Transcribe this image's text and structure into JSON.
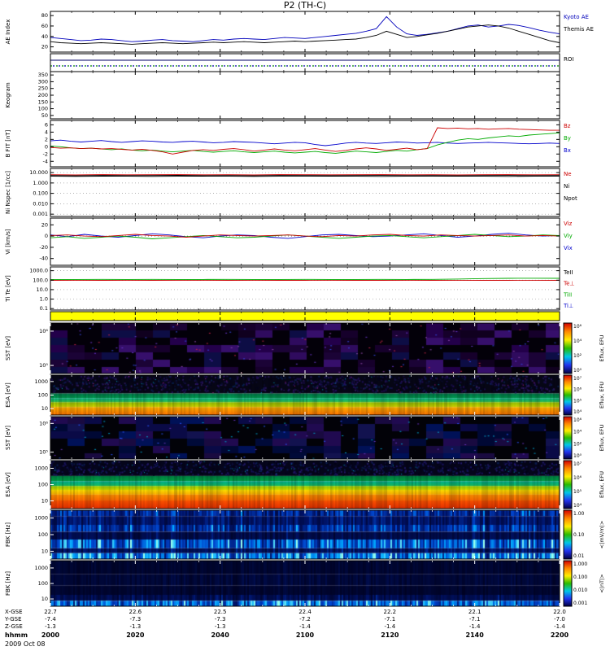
{
  "title": "P2 (TH-C)",
  "footer": {
    "date": "2009 Oct 08"
  },
  "time_axis": {
    "rows": [
      {
        "label": "X-GSE",
        "values": [
          "22.7",
          "22.6",
          "22.5",
          "22.4",
          "22.2",
          "22.1",
          "22.0"
        ]
      },
      {
        "label": "Y-GSE",
        "values": [
          "-7.4",
          "-7.3",
          "-7.3",
          "-7.2",
          "-7.1",
          "-7.1",
          "-7.0"
        ]
      },
      {
        "label": "Z-GSE",
        "values": [
          "-1.3",
          "-1.3",
          "-1.3",
          "-1.4",
          "-1.4",
          "-1.4",
          "-1.4"
        ]
      },
      {
        "label": "hhmm",
        "values": [
          "2000",
          "2020",
          "2040",
          "2100",
          "2120",
          "2140",
          "2200"
        ]
      }
    ]
  },
  "colorbar_gradient": [
    "#d40000",
    "#ff8800",
    "#ffee00",
    "#28bb00",
    "#00c8e8",
    "#2233ee",
    "#000040"
  ],
  "chart_data": [
    {
      "id": "ae",
      "type": "line",
      "ylabel": "AE Index",
      "ylim": [
        10,
        88
      ],
      "yticks": [
        80,
        60,
        40,
        20
      ],
      "series": [
        {
          "name": "Kyoto AE",
          "color": "#0000bb",
          "y": [
            38,
            36,
            34,
            32,
            33,
            35,
            34,
            32,
            30,
            31,
            33,
            34,
            32,
            31,
            30,
            32,
            34,
            33,
            35,
            36,
            35,
            34,
            36,
            38,
            37,
            36,
            38,
            40,
            42,
            44,
            46,
            50,
            55,
            78,
            58,
            45,
            42,
            44,
            47,
            50,
            55,
            60,
            62,
            58,
            60,
            63,
            61,
            57,
            52,
            48,
            45
          ]
        },
        {
          "name": "Themis AE",
          "color": "#000000",
          "y": [
            30,
            28,
            27,
            26,
            27,
            28,
            27,
            26,
            25,
            26,
            27,
            28,
            27,
            26,
            27,
            28,
            29,
            28,
            29,
            30,
            29,
            28,
            29,
            30,
            31,
            30,
            31,
            32,
            33,
            34,
            35,
            38,
            42,
            50,
            44,
            38,
            40,
            43,
            46,
            50,
            54,
            58,
            60,
            62,
            60,
            56,
            50,
            44,
            38,
            32,
            28
          ]
        }
      ],
      "right_labels": [
        {
          "text": "Kyoto AE",
          "color": "#0000bb"
        },
        {
          "text": "Themis AE",
          "color": "#000000"
        }
      ]
    },
    {
      "id": "roi",
      "type": "marker-strip",
      "line_color": "#000066",
      "dot_colors": [
        "#008800",
        "#0000aa"
      ],
      "right_labels": [
        {
          "text": "ROI",
          "color": "#000000"
        }
      ]
    },
    {
      "id": "keo",
      "type": "line",
      "ylabel": "Keogram",
      "ylim": [
        25,
        375
      ],
      "yticks": [
        350,
        300,
        250,
        200,
        150,
        100,
        50
      ],
      "series": []
    },
    {
      "id": "bfit",
      "type": "line",
      "ylabel": "B FIT [nT]",
      "ylim": [
        -5.5,
        7.2
      ],
      "yticks": [
        6,
        4,
        2,
        0,
        -2,
        -4
      ],
      "series": [
        {
          "name": "Bx",
          "color": "#0000cc",
          "y": [
            1.6,
            1.8,
            1.5,
            1.3,
            1.5,
            1.7,
            1.4,
            1.2,
            1.4,
            1.6,
            1.5,
            1.3,
            1.2,
            1.4,
            1.5,
            1.3,
            1.1,
            1.2,
            1.4,
            1.3,
            1.2,
            1.0,
            0.8,
            1.0,
            1.2,
            1.1,
            0.6,
            0.3,
            0.6,
            1.0,
            1.2,
            1.0,
            0.9,
            1.1,
            1.3,
            1.2,
            1.0,
            1.1,
            1.2,
            1.0,
            0.9,
            1.0,
            1.1,
            1.2,
            1.1,
            1.0,
            0.9,
            0.8,
            0.9,
            1.0,
            0.9
          ]
        },
        {
          "name": "By",
          "color": "#00aa00",
          "y": [
            0.2,
            0.0,
            -0.3,
            -0.5,
            -0.4,
            -0.6,
            -0.8,
            -0.6,
            -0.9,
            -1.1,
            -0.9,
            -1.2,
            -1.4,
            -1.2,
            -1.0,
            -1.3,
            -1.5,
            -1.3,
            -1.1,
            -1.4,
            -1.6,
            -1.4,
            -1.2,
            -1.5,
            -1.7,
            -1.5,
            -1.3,
            -1.6,
            -1.8,
            -1.5,
            -1.2,
            -1.4,
            -1.6,
            -1.3,
            -1.0,
            -1.2,
            -0.8,
            -0.5,
            0.5,
            1.2,
            1.8,
            2.2,
            2.0,
            2.4,
            2.7,
            3.0,
            2.8,
            3.2,
            3.4,
            3.6,
            3.8
          ]
        },
        {
          "name": "Bz",
          "color": "#cc0000",
          "y": [
            -0.2,
            -0.4,
            -0.3,
            -0.5,
            -0.4,
            -0.6,
            -0.5,
            -0.7,
            -0.9,
            -0.7,
            -1.0,
            -1.4,
            -2.0,
            -1.5,
            -1.0,
            -0.8,
            -1.0,
            -0.7,
            -0.5,
            -0.8,
            -1.2,
            -0.9,
            -0.6,
            -0.9,
            -1.1,
            -0.8,
            -0.5,
            -0.9,
            -1.3,
            -1.0,
            -0.6,
            -0.3,
            -0.6,
            -1.0,
            -0.7,
            -0.4,
            -0.8,
            -0.5,
            5.2,
            5.0,
            5.1,
            4.9,
            5.0,
            4.8,
            4.9,
            5.0,
            4.8,
            4.7,
            4.6,
            4.5,
            4.5
          ]
        }
      ],
      "right_labels": [
        {
          "text": "Bz",
          "color": "#cc0000"
        },
        {
          "text": "By",
          "color": "#00aa00"
        },
        {
          "text": "Bx",
          "color": "#0000cc"
        }
      ]
    },
    {
      "id": "ni",
      "type": "line",
      "yscale": "log",
      "ylabel": "Ni Nspec [1/cc]",
      "ylim": [
        0.0006,
        25
      ],
      "yticks": [
        10,
        1,
        0.1,
        0.01,
        0.001
      ],
      "ytick_labels": [
        "10.000",
        "1.000",
        "0.100",
        "0.010",
        "0.001"
      ],
      "dotted_gridlines": true,
      "series": [
        {
          "name": "Ne",
          "color": "#cc0000",
          "y": [
            6.2,
            6.0,
            6.3,
            6.1,
            6.2,
            6.4,
            6.1,
            6.2,
            6.0,
            6.3,
            6.2,
            6.1,
            6.2,
            6.3,
            6.1,
            6.2,
            6.0,
            6.2,
            6.3,
            6.1,
            6.2
          ]
        },
        {
          "name": "Ni",
          "color": "#000000",
          "y": [
            5.2,
            5.0,
            5.3,
            5.1,
            5.2,
            5.4,
            5.1,
            5.2,
            5.0,
            5.3,
            5.2,
            5.1,
            5.2,
            5.3,
            5.1,
            5.2,
            5.0,
            5.2,
            5.3,
            5.1,
            5.2
          ]
        },
        {
          "name": "Npot",
          "color": "#000000",
          "y": [
            4.4,
            4.3,
            4.5,
            4.4,
            4.3,
            4.4,
            4.5,
            4.4,
            4.3,
            4.4,
            4.4,
            4.5,
            4.4,
            4.3,
            4.4,
            4.4,
            4.5,
            4.4,
            4.3,
            4.4,
            4.4
          ]
        }
      ],
      "right_labels": [
        {
          "text": "Ne",
          "color": "#cc0000"
        },
        {
          "text": "Ni",
          "color": "#000000"
        },
        {
          "text": "Npot",
          "color": "#000000"
        }
      ]
    },
    {
      "id": "vi",
      "type": "line",
      "ylabel": "Vi [km/s]",
      "ylim": [
        -52,
        32
      ],
      "yticks": [
        20,
        0,
        -20,
        -40
      ],
      "zero_line": true,
      "series": [
        {
          "name": "Vix",
          "color": "#0000cc",
          "y": [
            2,
            -1,
            3,
            0,
            -2,
            1,
            4,
            2,
            -1,
            -3,
            0,
            2,
            1,
            -2,
            -4,
            -1,
            2,
            3,
            1,
            -1,
            0,
            2,
            4,
            1,
            -2,
            0,
            3,
            5,
            2,
            0,
            1
          ]
        },
        {
          "name": "Viy",
          "color": "#00aa00",
          "y": [
            -3,
            -1,
            -4,
            -2,
            0,
            -2,
            -5,
            -3,
            -1,
            1,
            -1,
            -3,
            -2,
            0,
            2,
            0,
            -2,
            -4,
            -2,
            0,
            1,
            -1,
            -3,
            -1,
            1,
            3,
            1,
            -1,
            0,
            2,
            1
          ]
        },
        {
          "name": "Viz",
          "color": "#cc0000",
          "y": [
            1,
            2,
            0,
            -1,
            1,
            3,
            1,
            0,
            -2,
            0,
            2,
            1,
            0,
            1,
            2,
            0,
            -1,
            1,
            0,
            2,
            3,
            1,
            0,
            2,
            1,
            0,
            1,
            2,
            0,
            1,
            0
          ]
        }
      ],
      "right_labels": [
        {
          "text": "Viz",
          "color": "#cc0000"
        },
        {
          "text": "Viy",
          "color": "#00aa00"
        },
        {
          "text": "Vix",
          "color": "#0000cc"
        }
      ]
    },
    {
      "id": "temp",
      "type": "line",
      "yscale": "log",
      "ylabel": "Ti Te [eV]",
      "ylim": [
        0.07,
        2500
      ],
      "yticks": [
        1000,
        100,
        10,
        1,
        0.1
      ],
      "ytick_labels": [
        "1000.0",
        "100.0",
        "10.0",
        "1.0",
        "0.1"
      ],
      "dotted_gridlines": true,
      "series": [
        {
          "name": "Te⊥",
          "color": "#cc0000",
          "y": [
            95,
            93,
            96,
            94,
            95,
            97,
            94,
            95,
            93,
            96,
            95,
            94,
            95,
            96,
            94,
            95,
            93,
            95,
            96,
            94,
            95
          ]
        },
        {
          "name": "TiII",
          "color": "#00aa00",
          "y": [
            120,
            118,
            122,
            119,
            121,
            120,
            118,
            121,
            120,
            119,
            121,
            120,
            119,
            121,
            120,
            122,
            130,
            148,
            158,
            160,
            158
          ]
        }
      ],
      "right_labels": [
        {
          "text": "TeII",
          "color": "#000000"
        },
        {
          "text": "Te⊥",
          "color": "#cc0000"
        },
        {
          "text": "TiII",
          "color": "#00aa00"
        },
        {
          "text": "Ti⊥",
          "color": "#0000cc"
        }
      ]
    },
    {
      "id": "sep",
      "type": "fill",
      "color": "#ffff00"
    },
    {
      "id": "sst_ion",
      "type": "heatmap",
      "ylabel": "SST [eV]",
      "ytick_labels": [
        "10⁶",
        "10⁵"
      ],
      "render": {
        "mode": "blocks",
        "bg": "#030009",
        "palette": [
          "#16002b",
          "#23004a",
          "#2f0b5e",
          "#1b0336",
          "#10001f",
          "#360f6b",
          "#0d0d45"
        ],
        "block": [
          21,
          9
        ],
        "density": 0.58,
        "specks": [
          "#6a35cc",
          "#c02446",
          "#3546e0",
          "#8c46a8"
        ],
        "speck_count": 150
      },
      "colorbar": {
        "label": "Eflux, EFU",
        "ticks": [
          "10⁶",
          "10⁴",
          "10²",
          "10⁰"
        ]
      }
    },
    {
      "id": "esa_ion",
      "type": "heatmap",
      "ylabel": "ESA [eV]",
      "ytick_labels": [
        "1000",
        "100",
        "10"
      ],
      "render": {
        "mode": "bands",
        "bands": [
          {
            "h": 0.46,
            "type": "speckle",
            "base": "#070718",
            "colors": [
              "#0d0d33",
              "#1a1050",
              "#241060",
              "#0a2255",
              "#05051f",
              "#301a66"
            ],
            "bright": [
              "#00bbdd",
              "#cc2299"
            ],
            "bright_n": 70
          },
          {
            "h": 0.12,
            "from": "#007a4d",
            "to": "#00a050"
          },
          {
            "h": 0.1,
            "from": "#00b487",
            "to": "#3cc24b"
          },
          {
            "h": 0.12,
            "from": "#93c400",
            "to": "#d8d800"
          },
          {
            "h": 0.2,
            "from": "#ffb300",
            "to": "#ff7300"
          }
        ]
      },
      "colorbar": {
        "label": "Eflux, EFU",
        "ticks": [
          "10⁷",
          "10⁶",
          "10⁵",
          "10⁴"
        ]
      }
    },
    {
      "id": "sst_ele",
      "type": "heatmap",
      "ylabel": "SST [eV]",
      "ytick_labels": [
        "10⁶",
        "10⁵"
      ],
      "render": {
        "mode": "blocks",
        "bg": "#020208",
        "palette": [
          "#000a38",
          "#001157",
          "#0a0a46",
          "#12124f",
          "#190a40",
          "#000834",
          "#200a50"
        ],
        "block": [
          21,
          9
        ],
        "density": 0.6,
        "specks": [
          "#2a55ff",
          "#00a0cc",
          "#6633bb"
        ],
        "speck_count": 120
      },
      "colorbar": {
        "label": "Eflux, EFU",
        "ticks": [
          "10⁶",
          "10⁴",
          "10²",
          "10⁰"
        ]
      }
    },
    {
      "id": "esa_ele",
      "type": "heatmap",
      "ylabel": "ESA [eV]",
      "ytick_labels": [
        "1000",
        "100",
        "10"
      ],
      "render": {
        "mode": "bands",
        "bands": [
          {
            "h": 0.32,
            "type": "speckle",
            "base": "#06061e",
            "colors": [
              "#0c0c3a",
              "#14145a",
              "#0a1e55",
              "#1c1468",
              "#04041a",
              "#241a70"
            ],
            "bright": [
              "#00bbdd"
            ],
            "bright_n": 50
          },
          {
            "h": 0.11,
            "from": "#008044",
            "to": "#00a244"
          },
          {
            "h": 0.1,
            "from": "#00b090",
            "to": "#16c060"
          },
          {
            "h": 0.08,
            "from": "#9ccc00",
            "to": "#d4e000"
          },
          {
            "h": 0.1,
            "from": "#ffe000",
            "to": "#ffb000"
          },
          {
            "h": 0.12,
            "from": "#ff9100",
            "to": "#ff6a00"
          },
          {
            "h": 0.17,
            "from": "#ff5500",
            "to": "#e83000"
          }
        ]
      },
      "colorbar": {
        "label": "Eflux, EFU",
        "ticks": [
          "10⁷",
          "10⁶",
          "10⁵",
          "10⁴"
        ]
      }
    },
    {
      "id": "fbk_e",
      "type": "heatmap",
      "ylabel": "FBK [Hz]",
      "ytick_labels": [
        "1000",
        "100",
        "10"
      ],
      "render": {
        "mode": "columns",
        "stops": [
          "#00001a",
          "#001266",
          "#0044cc",
          "#00aaff",
          "#99ffee"
        ],
        "profile": [
          {
            "h": 0.12,
            "level": 0.5
          },
          {
            "h": 0.18,
            "level": 0.34
          },
          {
            "h": 0.14,
            "level": 0.55
          },
          {
            "h": 0.16,
            "level": 0.22
          },
          {
            "h": 0.18,
            "level": 0.78
          },
          {
            "h": 0.1,
            "level": 0.3
          },
          {
            "h": 0.12,
            "level": 0.92
          }
        ]
      },
      "colorbar": {
        "label": "<|mV/m|>",
        "ticks": [
          "1.00",
          "0.10",
          "0.01"
        ]
      }
    },
    {
      "id": "fbk_b",
      "type": "heatmap",
      "ylabel": "FBK [Hz]",
      "ytick_labels": [
        "1000",
        "100",
        "10"
      ],
      "render": {
        "mode": "columns",
        "stops": [
          "#00001a",
          "#001266",
          "#0044cc",
          "#00aaff",
          "#99ffee"
        ],
        "profile": [
          {
            "h": 0.3,
            "level": 0.1
          },
          {
            "h": 0.25,
            "level": 0.14
          },
          {
            "h": 0.2,
            "level": 0.1
          },
          {
            "h": 0.13,
            "level": 0.25
          },
          {
            "h": 0.12,
            "level": 0.85
          }
        ]
      },
      "colorbar": {
        "label": "<|nT|>",
        "ticks": [
          "1.000",
          "0.100",
          "0.010",
          "0.001"
        ]
      }
    }
  ]
}
